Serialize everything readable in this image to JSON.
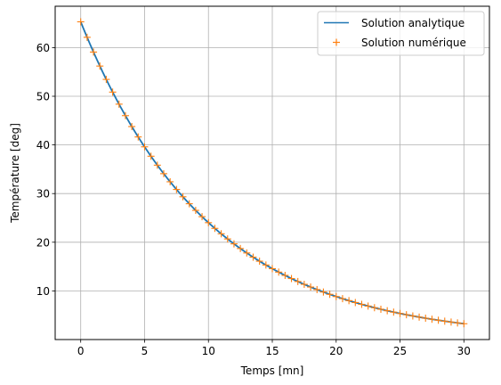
{
  "chart_data": {
    "type": "line",
    "xlabel": "Temps [mn]",
    "ylabel": "Température [deg]",
    "xlim": [
      -2.0,
      32.0
    ],
    "ylim": [
      0.0,
      68.5
    ],
    "xticks": [
      0,
      5,
      10,
      15,
      20,
      25,
      30
    ],
    "yticks": [
      10,
      20,
      30,
      40,
      50,
      60
    ],
    "grid": true,
    "legend_position": "top-right",
    "model": {
      "T0": 65.3,
      "k": 0.1,
      "t_start": 0,
      "t_end": 30,
      "step": 0.5
    },
    "series": [
      {
        "name": "Solution analytique",
        "style": "line",
        "color": "#1f77b4"
      },
      {
        "name": "Solution numérique",
        "style": "marker-plus",
        "color": "#ff7f0e"
      }
    ]
  }
}
